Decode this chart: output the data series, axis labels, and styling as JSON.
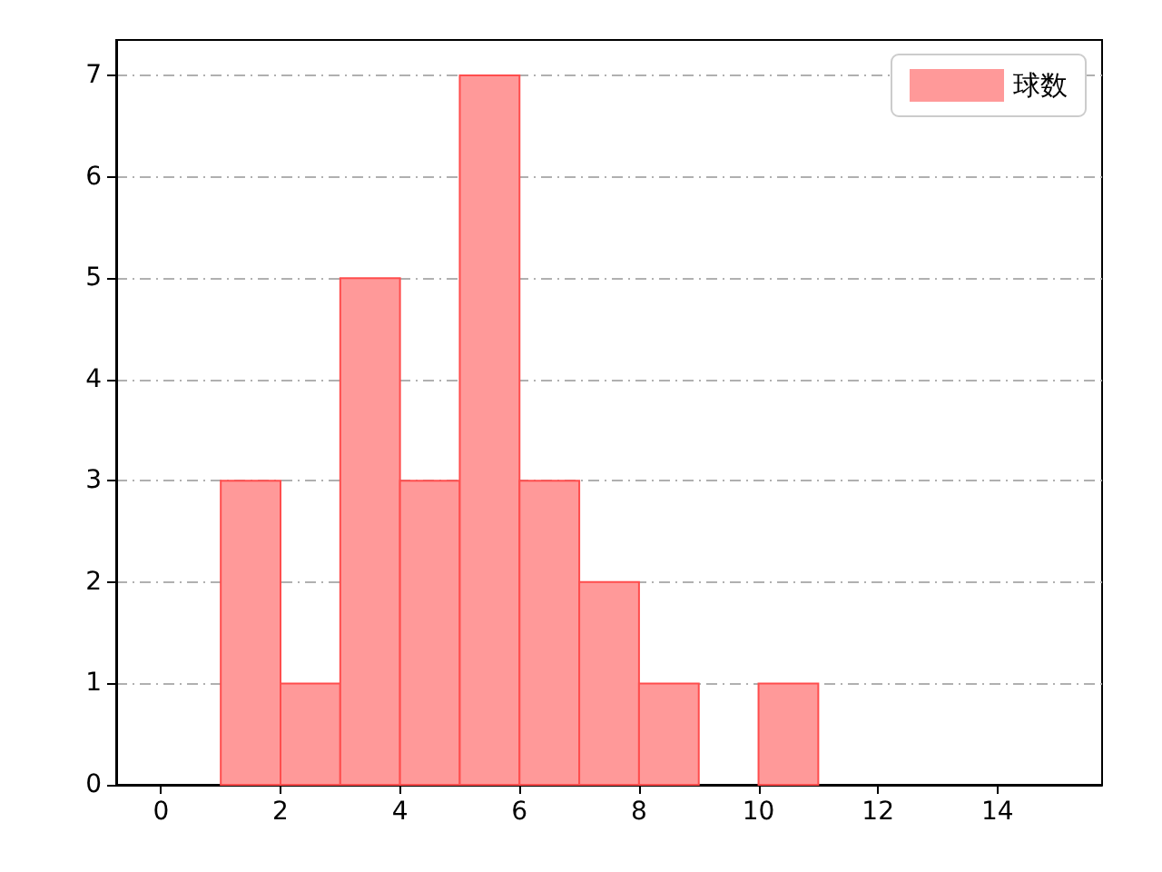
{
  "chart_data": {
    "type": "histogram",
    "bins": [
      1,
      2,
      3,
      4,
      5,
      6,
      7,
      8,
      9,
      10,
      11
    ],
    "series": [
      {
        "name": "球数",
        "color": "#ff9999",
        "values": [
          3,
          1,
          5,
          3,
          7,
          3,
          2,
          1,
          0,
          1
        ]
      }
    ],
    "xlim": [
      -0.75,
      15.75
    ],
    "xticks": [
      0,
      2,
      4,
      6,
      8,
      10,
      12,
      14
    ],
    "ylim": [
      0,
      7.35
    ],
    "yticks": [
      0,
      1,
      2,
      3,
      4,
      5,
      6,
      7
    ],
    "grid": "y",
    "legend": "top right"
  }
}
